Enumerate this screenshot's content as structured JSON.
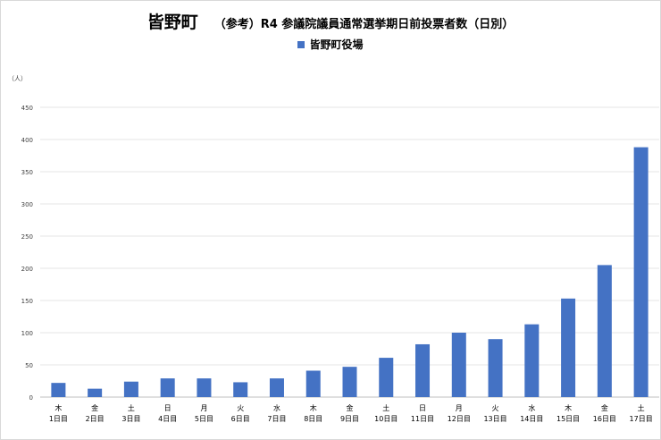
{
  "title": "皆野町",
  "subtitle": "（参考）R4 参議院議員通常選挙期日前投票者数（日別）",
  "unit": "（人）",
  "colors": {
    "bar": "#4472C4",
    "grid": "#e6e6e6",
    "axis": "#bfbfbf"
  },
  "chart_data": {
    "type": "bar",
    "title": "皆野町　（参考）R4 参議院議員通常選挙期日前投票者数（日別）",
    "ylabel": "（人）",
    "ylim": [
      0,
      450
    ],
    "yticks": [
      0,
      50,
      100,
      150,
      200,
      250,
      300,
      350,
      400,
      450
    ],
    "grid": true,
    "legend_placement": "top",
    "weekdays": [
      "木",
      "金",
      "土",
      "日",
      "月",
      "火",
      "水",
      "木",
      "金",
      "土",
      "日",
      "月",
      "火",
      "水",
      "木",
      "金",
      "土"
    ],
    "categories": [
      "1日目",
      "2日目",
      "3日目",
      "4日目",
      "5日目",
      "6日目",
      "7日目",
      "8日目",
      "9日目",
      "10日目",
      "11日目",
      "12日目",
      "13日目",
      "14日目",
      "15日目",
      "16日目",
      "17日目"
    ],
    "series": [
      {
        "name": "皆野町役場",
        "values": [
          22,
          13,
          24,
          29,
          29,
          23,
          29,
          41,
          47,
          61,
          82,
          100,
          90,
          113,
          153,
          205,
          388
        ]
      }
    ]
  }
}
